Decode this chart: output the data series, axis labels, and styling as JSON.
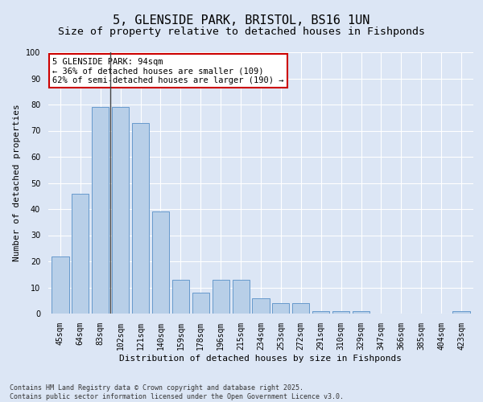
{
  "title": "5, GLENSIDE PARK, BRISTOL, BS16 1UN",
  "subtitle": "Size of property relative to detached houses in Fishponds",
  "xlabel": "Distribution of detached houses by size in Fishponds",
  "ylabel": "Number of detached properties",
  "categories": [
    "45sqm",
    "64sqm",
    "83sqm",
    "102sqm",
    "121sqm",
    "140sqm",
    "159sqm",
    "178sqm",
    "196sqm",
    "215sqm",
    "234sqm",
    "253sqm",
    "272sqm",
    "291sqm",
    "310sqm",
    "329sqm",
    "347sqm",
    "366sqm",
    "385sqm",
    "404sqm",
    "423sqm"
  ],
  "values": [
    22,
    46,
    79,
    79,
    73,
    39,
    13,
    8,
    13,
    13,
    6,
    4,
    4,
    1,
    1,
    1,
    0,
    0,
    0,
    0,
    1
  ],
  "bar_color": "#b8cfe8",
  "bar_edge_color": "#6699cc",
  "background_color": "#dce6f5",
  "grid_color": "#ffffff",
  "annotation_text": "5 GLENSIDE PARK: 94sqm\n← 36% of detached houses are smaller (109)\n62% of semi-detached houses are larger (190) →",
  "annotation_box_color": "#ffffff",
  "annotation_box_edge": "#cc0000",
  "property_index": 2,
  "vline_color": "#444444",
  "ylim": [
    0,
    100
  ],
  "yticks": [
    0,
    10,
    20,
    30,
    40,
    50,
    60,
    70,
    80,
    90,
    100
  ],
  "footnote1": "Contains HM Land Registry data © Crown copyright and database right 2025.",
  "footnote2": "Contains public sector information licensed under the Open Government Licence v3.0.",
  "title_fontsize": 11,
  "subtitle_fontsize": 9.5,
  "label_fontsize": 8,
  "tick_fontsize": 7,
  "annotation_fontsize": 7.5,
  "footnote_fontsize": 6
}
